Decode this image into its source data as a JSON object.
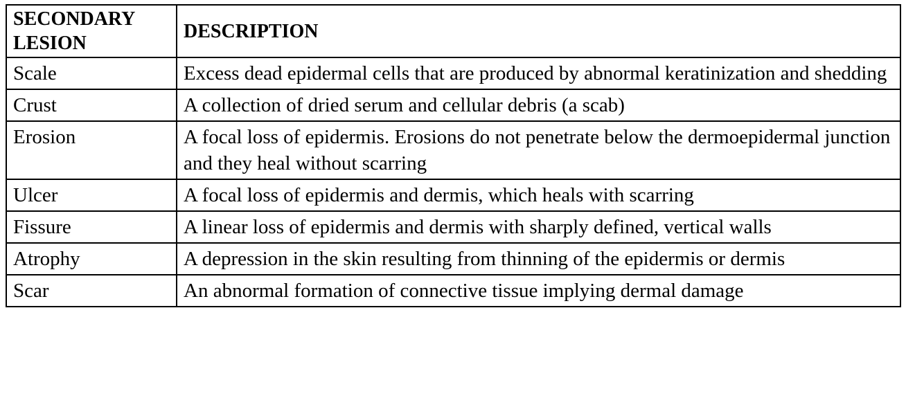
{
  "table": {
    "headers": [
      "SECONDARY LESION",
      "DESCRIPTION"
    ],
    "rows": [
      {
        "lesion": "Scale",
        "description": "Excess dead epidermal cells that are produced by abnormal keratinization and shedding"
      },
      {
        "lesion": "Crust",
        "description": "A collection of dried serum and cellular debris (a scab)"
      },
      {
        "lesion": "Erosion",
        "description": "A focal loss of epidermis. Erosions do not penetrate below the dermoepidermal junction and they heal without scarring"
      },
      {
        "lesion": "Ulcer",
        "description": "A focal loss of epidermis and dermis, which heals with scarring"
      },
      {
        "lesion": "Fissure",
        "description": "A linear loss of epidermis and dermis with sharply defined, vertical walls"
      },
      {
        "lesion": "Atrophy",
        "description": "A depression in the skin resulting from thinning of the epidermis or dermis"
      },
      {
        "lesion": "Scar",
        "description": "An abnormal formation of connective tissue implying dermal damage"
      }
    ]
  }
}
